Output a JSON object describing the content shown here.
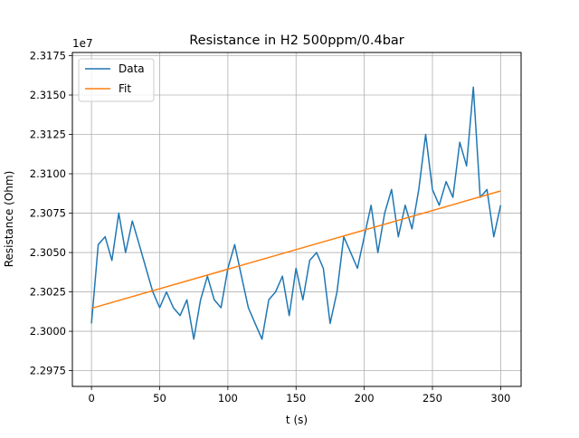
{
  "chart_data": {
    "type": "line",
    "title": "Resistance in H2 500ppm/0.4bar",
    "xlabel": "t (s)",
    "ylabel": "Resistance (Ohm)",
    "y_offset_label": "1e7",
    "xlim": [
      -14,
      315
    ],
    "ylim": [
      2.2965,
      2.3177
    ],
    "xticks": [
      0,
      50,
      100,
      150,
      200,
      250,
      300
    ],
    "yticks": [
      2.2975,
      2.3,
      2.3025,
      2.305,
      2.3075,
      2.31,
      2.3125,
      2.315,
      2.3175
    ],
    "ytick_labels": [
      "2.2975",
      "2.3000",
      "2.3025",
      "2.3050",
      "2.3075",
      "2.3100",
      "2.3125",
      "2.3150",
      "2.3175"
    ],
    "grid": true,
    "legend_position": "upper-left",
    "series": [
      {
        "name": "Data",
        "color": "#1f77b4",
        "x": [
          0,
          5,
          10,
          15,
          20,
          25,
          30,
          35,
          40,
          45,
          50,
          55,
          60,
          65,
          70,
          75,
          80,
          85,
          90,
          95,
          100,
          105,
          110,
          115,
          120,
          125,
          130,
          135,
          140,
          145,
          150,
          155,
          160,
          165,
          170,
          175,
          180,
          185,
          190,
          195,
          200,
          205,
          210,
          215,
          220,
          225,
          230,
          235,
          240,
          245,
          250,
          255,
          260,
          265,
          270,
          275,
          280,
          285,
          290,
          295,
          300
        ],
        "y": [
          2.3005,
          2.3055,
          2.306,
          2.3045,
          2.3075,
          2.305,
          2.307,
          2.3055,
          2.304,
          2.3025,
          2.3015,
          2.3025,
          2.3015,
          2.301,
          2.302,
          2.2995,
          2.302,
          2.3035,
          2.302,
          2.3015,
          2.304,
          2.3055,
          2.3035,
          2.3015,
          2.3005,
          2.2995,
          2.302,
          2.3025,
          2.3035,
          2.301,
          2.304,
          2.302,
          2.3045,
          2.305,
          2.304,
          2.3005,
          2.3025,
          2.306,
          2.305,
          2.304,
          2.306,
          2.308,
          2.305,
          2.3075,
          2.309,
          2.306,
          2.308,
          2.3065,
          2.309,
          2.3125,
          2.309,
          2.308,
          2.3095,
          2.3085,
          2.312,
          2.3105,
          2.3155,
          2.3085,
          2.309,
          2.306,
          2.308
        ]
      },
      {
        "name": "Fit",
        "color": "#ff7f0e",
        "x": [
          0,
          300
        ],
        "y": [
          2.30146,
          2.30891
        ]
      }
    ]
  }
}
